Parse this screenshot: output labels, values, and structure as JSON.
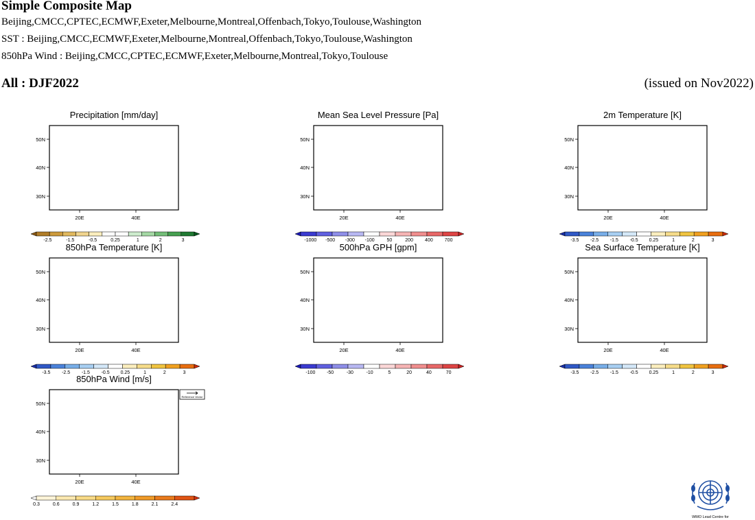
{
  "header": {
    "title": "Simple Composite Map",
    "line1": "Beijing,CMCC,CPTEC,ECMWF,Exeter,Melbourne,Montreal,Offenbach,Tokyo,Toulouse,Washington",
    "line2": "SST : Beijing,CMCC,ECMWF,Exeter,Melbourne,Montreal,Offenbach,Tokyo,Toulouse,Washington",
    "line3": "850hPa Wind : Beijing,CMCC,CPTEC,ECMWF,Exeter,Melbourne,Montreal,Tokyo,Toulouse",
    "season": "All : DJF2022",
    "issued": "(issued on Nov2022)"
  },
  "axes": {
    "lat_ticks": [
      "50N",
      "40N",
      "30N"
    ],
    "lon_ticks": [
      "20E",
      "40E"
    ]
  },
  "maps": [
    {
      "id": "precipitation",
      "title": "Precipitation [mm/day]",
      "scale": [
        "-2.5",
        "-1.5",
        "-0.5",
        "0.25",
        "1",
        "2",
        "3"
      ],
      "colors": [
        "#8c5a14",
        "#b07c28",
        "#cc9a3c",
        "#e0b85e",
        "#f0d48e",
        "#fbeebe",
        "#ffffff",
        "#ffffff",
        "#cdeccd",
        "#a4d8a4",
        "#74be78",
        "#46a050",
        "#207a32",
        "#0a5a20"
      ]
    },
    {
      "id": "mslp",
      "title": "Mean Sea Level Pressure [Pa]",
      "scale": [
        "-1000",
        "-500",
        "-300",
        "-100",
        "50",
        "200",
        "400",
        "700"
      ],
      "colors": [
        "#1a1ab8",
        "#3a3ad0",
        "#6060e0",
        "#8e8ee8",
        "#b8b8f2",
        "#ffffff",
        "#fbd7d7",
        "#f6b4b4",
        "#f08e8e",
        "#e86868",
        "#de4444",
        "#cc2222"
      ]
    },
    {
      "id": "t2m",
      "title": "2m Temperature [K]",
      "scale": [
        "-3.5",
        "-2.5",
        "-1.5",
        "-0.5",
        "0.25",
        "1",
        "2",
        "3"
      ],
      "colors": [
        "#1a2fa8",
        "#2f58c6",
        "#4a82da",
        "#78aee8",
        "#a8cff2",
        "#d4e8f8",
        "#ffffff",
        "#fbeebe",
        "#f6dc8a",
        "#f0c440",
        "#f0a020",
        "#e86e10",
        "#cc2a0a"
      ]
    },
    {
      "id": "t850",
      "title": "850hPa Temperature [K]",
      "scale": [
        "-3.5",
        "-2.5",
        "-1.5",
        "-0.5",
        "0.25",
        "1",
        "2",
        "3"
      ],
      "colors": [
        "#1a2fa8",
        "#2f58c6",
        "#4a82da",
        "#78aee8",
        "#a8cff2",
        "#d4e8f8",
        "#ffffff",
        "#fbeebe",
        "#f6dc8a",
        "#f0c440",
        "#f0a020",
        "#e86e10",
        "#cc2a0a"
      ]
    },
    {
      "id": "gph500",
      "title": "500hPa GPH [gpm]",
      "scale": [
        "-100",
        "-50",
        "-30",
        "-10",
        "5",
        "20",
        "40",
        "70"
      ],
      "colors": [
        "#1a1ab8",
        "#3a3ad0",
        "#6060e0",
        "#8e8ee8",
        "#b8b8f2",
        "#ffffff",
        "#fbd7d7",
        "#f6b4b4",
        "#f08e8e",
        "#e86868",
        "#de4444",
        "#cc2222"
      ]
    },
    {
      "id": "sst",
      "title": "Sea Surface Temperature [K]",
      "scale": [
        "-3.5",
        "-2.5",
        "-1.5",
        "-0.5",
        "0.25",
        "1",
        "2",
        "3"
      ],
      "colors": [
        "#1a2fa8",
        "#2f58c6",
        "#4a82da",
        "#78aee8",
        "#a8cff2",
        "#d4e8f8",
        "#ffffff",
        "#fbeebe",
        "#f6dc8a",
        "#f0c440",
        "#f0a020",
        "#e86e10",
        "#cc2a0a"
      ]
    },
    {
      "id": "wind850",
      "title": "850hPa Wind [m/s]",
      "scale": [
        "0.3",
        "0.6",
        "0.9",
        "1.2",
        "1.5",
        "1.8",
        "2.1",
        "2.4"
      ],
      "colors": [
        "#ffffff",
        "#fdf4d8",
        "#fbe8b0",
        "#f8da86",
        "#f5c95e",
        "#f2b43e",
        "#ef9a28",
        "#e97a1c",
        "#e05414",
        "#d6300e"
      ],
      "reference_vector": "Reference Vector"
    }
  ],
  "logo_caption": "WMO Lead Centre for"
}
